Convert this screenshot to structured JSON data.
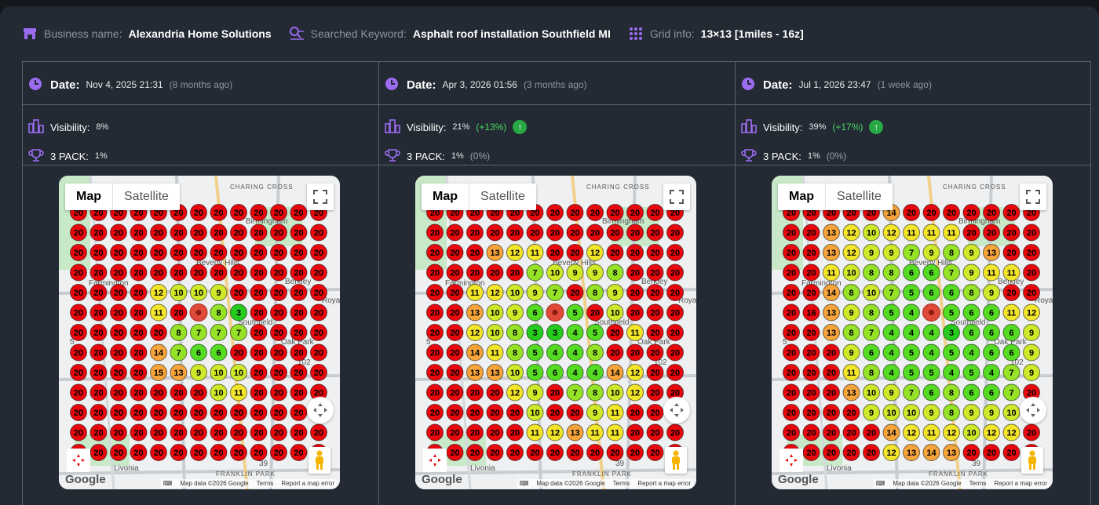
{
  "header": {
    "business_label": "Business name:",
    "business_value": "Alexandria Home Solutions",
    "keyword_label": "Searched Keyword:",
    "keyword_value": "Asphalt roof installation Southfield MI",
    "grid_label": "Grid info:",
    "grid_value": "13×13 [1miles - 16z]"
  },
  "colors": {
    "accent": "#9b6cf0",
    "up": "#27a844",
    "delta": "#4cd964"
  },
  "columns": [
    {
      "date_label": "Date:",
      "date": "Nov 4, 2025 21:31",
      "ago": "(8 months ago)",
      "visibility_label": "Visibility:",
      "visibility": "8%",
      "visibility_delta": "",
      "pack_label": "3 PACK:",
      "pack": "1%",
      "pack_delta": "",
      "grid": [
        [
          20,
          20,
          20,
          20,
          20,
          20,
          20,
          20,
          20,
          20,
          20,
          20,
          20
        ],
        [
          20,
          20,
          20,
          20,
          20,
          20,
          20,
          20,
          20,
          20,
          20,
          20,
          20
        ],
        [
          20,
          20,
          20,
          20,
          20,
          20,
          20,
          20,
          20,
          20,
          20,
          20,
          20
        ],
        [
          20,
          20,
          20,
          20,
          20,
          20,
          20,
          20,
          20,
          20,
          20,
          20,
          20
        ],
        [
          20,
          20,
          20,
          20,
          12,
          10,
          10,
          9,
          20,
          20,
          20,
          20,
          20
        ],
        [
          20,
          20,
          20,
          20,
          11,
          20,
          null,
          8,
          3,
          20,
          20,
          20,
          20
        ],
        [
          20,
          20,
          20,
          20,
          20,
          8,
          7,
          7,
          7,
          20,
          20,
          20,
          20
        ],
        [
          20,
          20,
          20,
          20,
          14,
          7,
          6,
          6,
          20,
          20,
          20,
          20,
          20
        ],
        [
          20,
          20,
          20,
          20,
          15,
          13,
          9,
          10,
          10,
          20,
          20,
          20,
          20
        ],
        [
          20,
          20,
          20,
          20,
          20,
          20,
          20,
          10,
          11,
          20,
          20,
          20,
          20
        ],
        [
          20,
          20,
          20,
          20,
          20,
          20,
          20,
          20,
          20,
          20,
          20,
          20,
          20
        ],
        [
          20,
          20,
          20,
          20,
          20,
          20,
          20,
          20,
          20,
          20,
          20,
          20,
          20
        ],
        [
          20,
          20,
          20,
          20,
          20,
          20,
          20,
          20,
          20,
          20,
          20,
          20,
          20
        ]
      ]
    },
    {
      "date_label": "Date:",
      "date": "Apr 3, 2026 01:56",
      "ago": "(3 months ago)",
      "visibility_label": "Visibility:",
      "visibility": "21%",
      "visibility_delta": "(+13%)",
      "pack_label": "3 PACK:",
      "pack": "1%",
      "pack_delta": "(0%)",
      "grid": [
        [
          20,
          20,
          20,
          20,
          20,
          20,
          20,
          20,
          20,
          20,
          20,
          20,
          20
        ],
        [
          20,
          20,
          20,
          20,
          20,
          20,
          20,
          20,
          20,
          20,
          20,
          20,
          20
        ],
        [
          20,
          20,
          20,
          13,
          12,
          11,
          20,
          20,
          12,
          20,
          20,
          20,
          20
        ],
        [
          20,
          20,
          20,
          20,
          20,
          7,
          10,
          9,
          9,
          8,
          20,
          20,
          20
        ],
        [
          20,
          20,
          11,
          12,
          10,
          9,
          7,
          20,
          8,
          9,
          20,
          20,
          20
        ],
        [
          20,
          20,
          13,
          10,
          9,
          6,
          null,
          5,
          20,
          10,
          20,
          20,
          20
        ],
        [
          20,
          20,
          12,
          10,
          8,
          3,
          3,
          4,
          5,
          20,
          11,
          20,
          20
        ],
        [
          20,
          20,
          14,
          11,
          8,
          5,
          4,
          4,
          8,
          20,
          20,
          20,
          20
        ],
        [
          20,
          20,
          13,
          13,
          10,
          5,
          6,
          4,
          4,
          14,
          12,
          20,
          20
        ],
        [
          20,
          20,
          20,
          20,
          12,
          9,
          20,
          7,
          8,
          10,
          12,
          20,
          20
        ],
        [
          20,
          20,
          20,
          20,
          20,
          10,
          20,
          20,
          9,
          11,
          20,
          20,
          20
        ],
        [
          20,
          20,
          20,
          20,
          20,
          11,
          12,
          13,
          11,
          11,
          20,
          20,
          20
        ],
        [
          20,
          20,
          20,
          20,
          20,
          20,
          20,
          20,
          20,
          20,
          20,
          20,
          20
        ]
      ]
    },
    {
      "date_label": "Date:",
      "date": "Jul 1, 2026 23:47",
      "ago": "(1 week ago)",
      "visibility_label": "Visibility:",
      "visibility": "39%",
      "visibility_delta": "(+17%)",
      "pack_label": "3 PACK:",
      "pack": "1%",
      "pack_delta": "(0%)",
      "grid": [
        [
          20,
          20,
          20,
          20,
          20,
          14,
          20,
          20,
          20,
          20,
          20,
          20,
          20
        ],
        [
          20,
          20,
          13,
          12,
          10,
          12,
          11,
          11,
          11,
          20,
          20,
          20,
          20
        ],
        [
          20,
          20,
          13,
          12,
          9,
          9,
          7,
          9,
          8,
          9,
          13,
          20,
          20
        ],
        [
          20,
          20,
          11,
          10,
          8,
          8,
          6,
          6,
          7,
          9,
          11,
          11,
          20
        ],
        [
          20,
          20,
          14,
          8,
          10,
          7,
          5,
          6,
          6,
          8,
          9,
          20,
          20
        ],
        [
          20,
          16,
          13,
          9,
          8,
          5,
          4,
          null,
          5,
          6,
          6,
          11,
          12
        ],
        [
          20,
          20,
          13,
          8,
          7,
          4,
          4,
          4,
          3,
          6,
          6,
          6,
          9
        ],
        [
          20,
          20,
          20,
          9,
          6,
          4,
          5,
          4,
          5,
          4,
          6,
          6,
          9
        ],
        [
          20,
          20,
          20,
          11,
          8,
          4,
          5,
          5,
          4,
          5,
          4,
          7,
          9
        ],
        [
          20,
          20,
          20,
          13,
          10,
          9,
          7,
          6,
          8,
          6,
          6,
          7,
          20
        ],
        [
          20,
          20,
          20,
          20,
          9,
          10,
          10,
          9,
          8,
          9,
          9,
          10,
          20
        ],
        [
          20,
          20,
          20,
          20,
          20,
          14,
          12,
          11,
          12,
          10,
          12,
          12,
          20
        ],
        [
          20,
          20,
          20,
          20,
          20,
          12,
          13,
          14,
          13,
          20,
          20,
          20,
          20
        ]
      ]
    }
  ],
  "map": {
    "toggle_map": "Map",
    "toggle_satellite": "Satellite",
    "places": {
      "charing_cross": "CHARING CROSS",
      "birmingham": "Birmingham",
      "beverly_hills": "Beverly Hills",
      "farmington": "Farmington",
      "berkley": "Berkley",
      "royal": "Royal",
      "southfield": "Southfield",
      "oak_park": "Oak Park",
      "livonia": "Livonia",
      "franklin_park": "FRANKLIN PARK",
      "hwy102": "102",
      "hwy39": "39",
      "hwy5": "5"
    },
    "google": "Google",
    "attrib_data": "Map data ©2026 Google",
    "attrib_terms": "Terms",
    "attrib_report": "Report a map error"
  }
}
